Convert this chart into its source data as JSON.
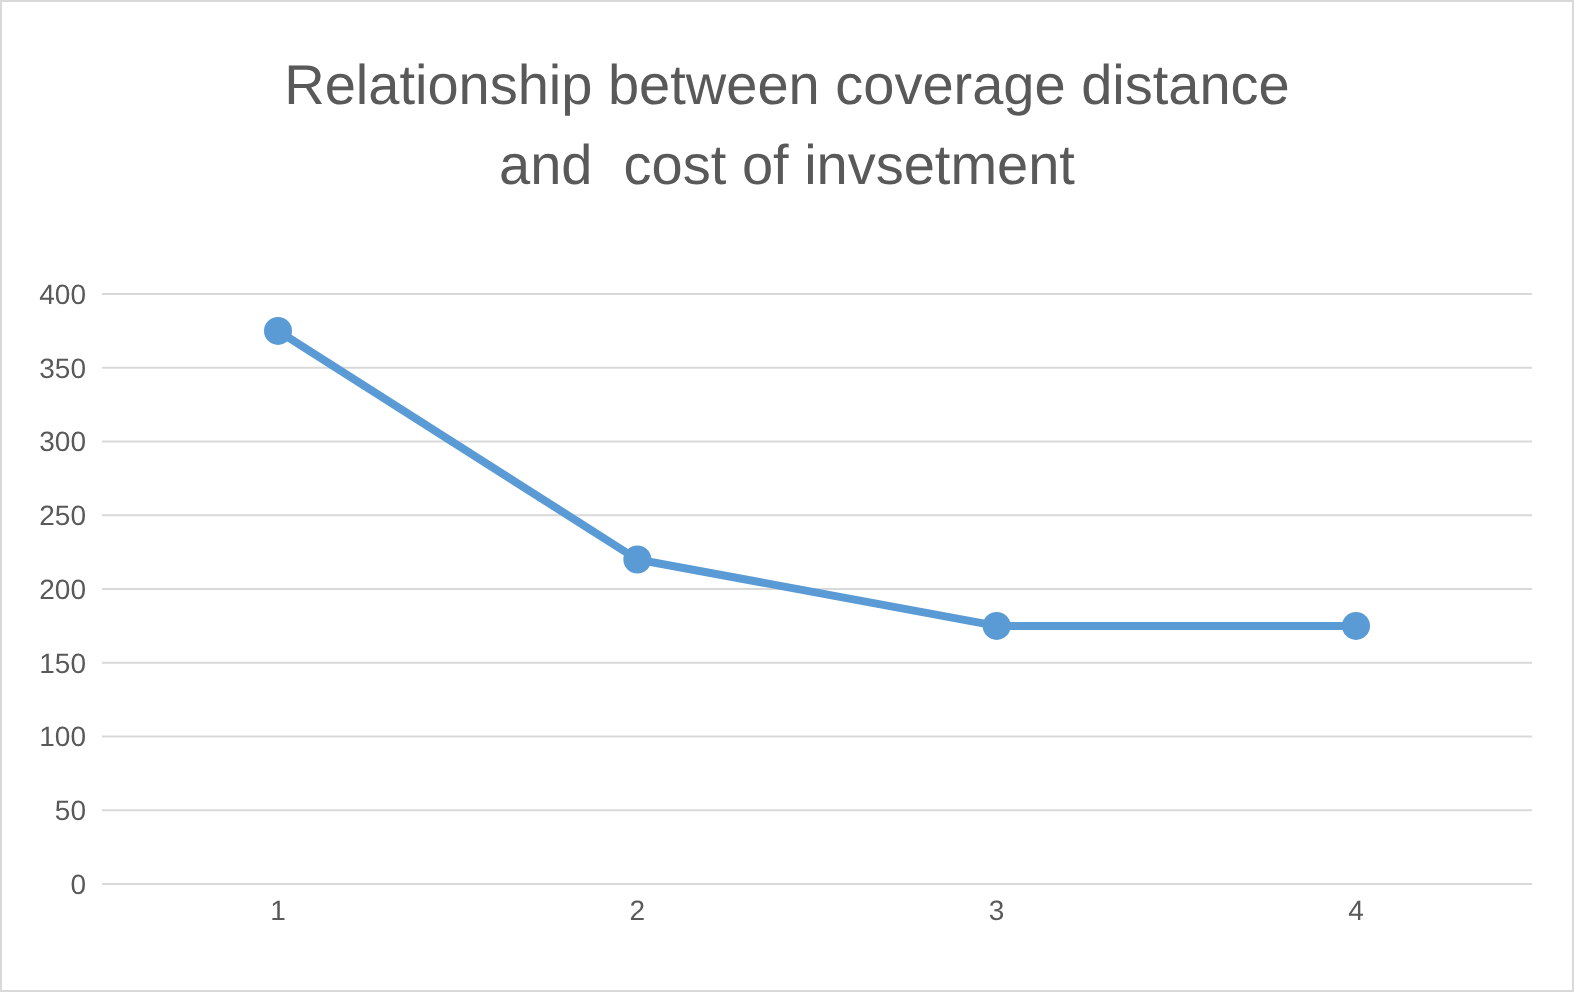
{
  "chart_data": {
    "type": "line",
    "title": "Relationship between coverage distance and  cost of invsetment",
    "categories": [
      "1",
      "2",
      "3",
      "4"
    ],
    "series": [
      {
        "color": "#5b9bd5",
        "values": [
          375,
          220,
          175,
          175
        ]
      }
    ],
    "ylim": [
      0,
      400
    ],
    "yticks": [
      0,
      50,
      100,
      150,
      200,
      250,
      300,
      350,
      400
    ],
    "grid": "y",
    "legend": false,
    "marker": "circle",
    "line_style": "solid"
  }
}
